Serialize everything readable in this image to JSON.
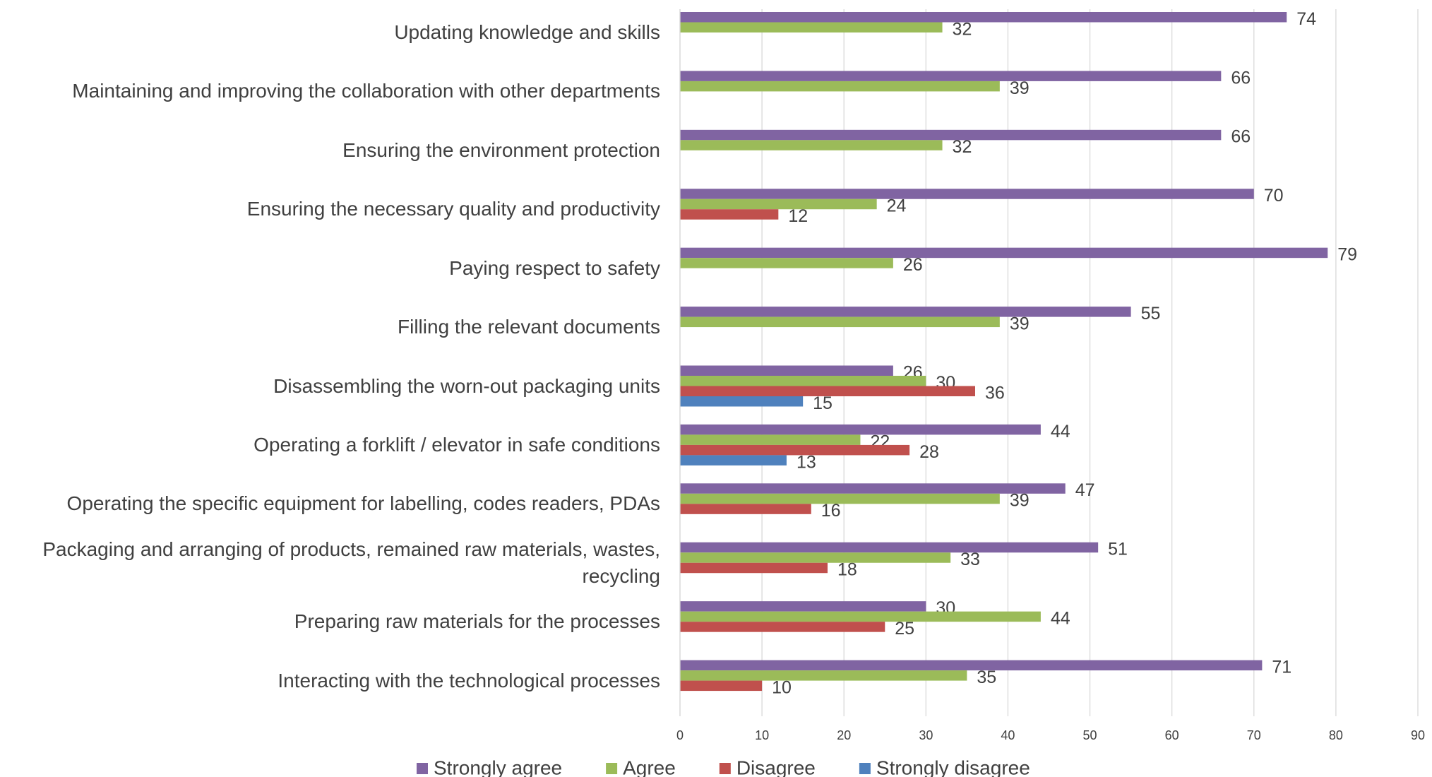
{
  "chart_data": {
    "type": "bar",
    "orientation": "horizontal",
    "categories": [
      "Updating knowledge and skills",
      "Maintaining and improving the collaboration with other departments",
      "Ensuring the environment protection",
      "Ensuring the necessary quality and productivity",
      "Paying respect to safety",
      "Filling the relevant documents",
      "Disassembling the worn-out packaging units",
      "Operating a forklift / elevator in safe conditions",
      "Operating the specific equipment for labelling, codes readers, PDAs",
      "Packaging and arranging of products, remained raw materials, wastes, recycling",
      "Preparing raw materials for the processes",
      "Interacting with the technological processes"
    ],
    "series": [
      {
        "name": "Strongly agree",
        "color": "#8064a2",
        "values": [
          74,
          66,
          66,
          70,
          79,
          55,
          26,
          44,
          47,
          51,
          30,
          71
        ]
      },
      {
        "name": "Agree",
        "color": "#9bbb59",
        "values": [
          32,
          39,
          32,
          24,
          26,
          39,
          30,
          22,
          39,
          33,
          44,
          35
        ]
      },
      {
        "name": "Disagree",
        "color": "#c0504d",
        "values": [
          null,
          null,
          null,
          12,
          null,
          null,
          36,
          28,
          16,
          18,
          25,
          10
        ]
      },
      {
        "name": "Strongly disagree",
        "color": "#4f81bd",
        "values": [
          null,
          null,
          null,
          null,
          null,
          null,
          15,
          13,
          null,
          null,
          null,
          null
        ]
      }
    ],
    "xlim": [
      0,
      90
    ],
    "xticks": [
      0,
      10,
      20,
      30,
      40,
      50,
      60,
      70,
      80,
      90
    ],
    "grid": true,
    "legend": "bottom"
  }
}
